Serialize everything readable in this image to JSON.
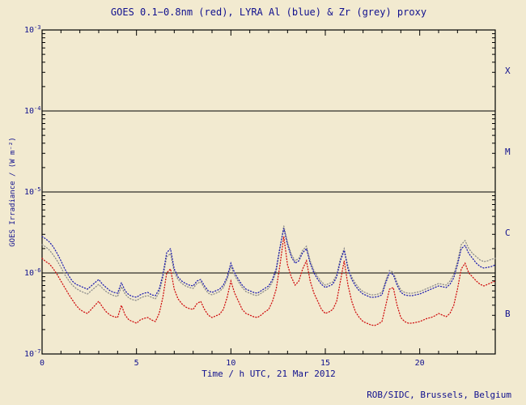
{
  "page": {
    "background_color": "#f2ead0",
    "text_color": "#10108e",
    "frame_color": "#000000",
    "footer": "ROB/SIDC, Brussels, Belgium"
  },
  "chart_data": {
    "type": "line",
    "title": "GOES 0.1−0.8nm (red), LYRA Al (blue) & Zr (grey) proxy",
    "xlabel": "Time / h UTC, 21 Mar 2012",
    "ylabel": "GOES Irradiance / (W m⁻²)",
    "x_range": [
      0,
      24
    ],
    "x_major_ticks": [
      0,
      5,
      10,
      15,
      20
    ],
    "x_minor_step": 1,
    "x_start": 0,
    "x_step": 0.2,
    "y_scale": "log",
    "y_log_range": [
      -7,
      -3
    ],
    "y_tick_exponents": [
      -7,
      -6,
      -5,
      -4,
      -3
    ],
    "hlines_log10": [
      -6,
      -5,
      -4
    ],
    "grid": false,
    "legend_position": "in-title",
    "flux_classes": [
      {
        "label": "X",
        "log10_mid": -3.5
      },
      {
        "label": "M",
        "log10_mid": -4.5
      },
      {
        "label": "C",
        "log10_mid": -5.5
      },
      {
        "label": "B",
        "log10_mid": -6.5
      }
    ],
    "series": [
      {
        "name": "LYRA Zr proxy",
        "color": "#8a8a8a",
        "values_log10": [
          -5.65,
          -5.68,
          -5.72,
          -5.78,
          -5.85,
          -5.93,
          -6.02,
          -6.09,
          -6.15,
          -6.19,
          -6.22,
          -6.24,
          -6.26,
          -6.22,
          -6.18,
          -6.14,
          -6.19,
          -6.23,
          -6.26,
          -6.28,
          -6.29,
          -6.17,
          -6.26,
          -6.31,
          -6.33,
          -6.34,
          -6.31,
          -6.29,
          -6.28,
          -6.3,
          -6.32,
          -6.24,
          -6.06,
          -5.8,
          -5.76,
          -5.99,
          -6.08,
          -6.13,
          -6.16,
          -6.18,
          -6.19,
          -6.13,
          -6.11,
          -6.19,
          -6.25,
          -6.27,
          -6.25,
          -6.23,
          -6.18,
          -6.08,
          -5.92,
          -6.03,
          -6.11,
          -6.18,
          -6.23,
          -6.25,
          -6.27,
          -6.28,
          -6.25,
          -6.22,
          -6.19,
          -6.11,
          -5.98,
          -5.7,
          -5.42,
          -5.62,
          -5.77,
          -5.85,
          -5.82,
          -5.72,
          -5.67,
          -5.85,
          -5.97,
          -6.05,
          -6.11,
          -6.15,
          -6.13,
          -6.11,
          -6.02,
          -5.82,
          -5.7,
          -5.92,
          -6.05,
          -6.13,
          -6.19,
          -6.23,
          -6.25,
          -6.27,
          -6.27,
          -6.26,
          -6.24,
          -6.09,
          -5.97,
          -5.99,
          -6.12,
          -6.21,
          -6.24,
          -6.25,
          -6.25,
          -6.24,
          -6.23,
          -6.21,
          -6.19,
          -6.17,
          -6.15,
          -6.13,
          -6.14,
          -6.15,
          -6.1,
          -6.02,
          -5.86,
          -5.65,
          -5.6,
          -5.7,
          -5.76,
          -5.8,
          -5.84,
          -5.86,
          -5.85,
          -5.83,
          -5.82
        ]
      },
      {
        "name": "LYRA Al",
        "color": "#2020b0",
        "values_log10": [
          -5.55,
          -5.58,
          -5.62,
          -5.68,
          -5.76,
          -5.85,
          -5.95,
          -6.03,
          -6.1,
          -6.14,
          -6.16,
          -6.18,
          -6.2,
          -6.16,
          -6.12,
          -6.08,
          -6.14,
          -6.18,
          -6.22,
          -6.24,
          -6.25,
          -6.12,
          -6.22,
          -6.27,
          -6.29,
          -6.3,
          -6.27,
          -6.25,
          -6.24,
          -6.27,
          -6.28,
          -6.2,
          -6.02,
          -5.75,
          -5.7,
          -5.95,
          -6.05,
          -6.1,
          -6.13,
          -6.15,
          -6.16,
          -6.1,
          -6.08,
          -6.16,
          -6.22,
          -6.24,
          -6.22,
          -6.2,
          -6.15,
          -6.05,
          -5.88,
          -6.0,
          -6.08,
          -6.15,
          -6.2,
          -6.22,
          -6.24,
          -6.25,
          -6.22,
          -6.19,
          -6.16,
          -6.08,
          -5.95,
          -5.68,
          -5.45,
          -5.65,
          -5.8,
          -5.88,
          -5.85,
          -5.75,
          -5.7,
          -5.88,
          -6.0,
          -6.08,
          -6.14,
          -6.18,
          -6.16,
          -6.14,
          -6.05,
          -5.85,
          -5.72,
          -5.95,
          -6.08,
          -6.16,
          -6.22,
          -6.26,
          -6.28,
          -6.3,
          -6.3,
          -6.29,
          -6.27,
          -6.12,
          -6.0,
          -6.02,
          -6.15,
          -6.24,
          -6.27,
          -6.28,
          -6.28,
          -6.27,
          -6.26,
          -6.24,
          -6.22,
          -6.2,
          -6.18,
          -6.16,
          -6.17,
          -6.18,
          -6.14,
          -6.06,
          -5.9,
          -5.7,
          -5.66,
          -5.76,
          -5.82,
          -5.88,
          -5.92,
          -5.94,
          -5.93,
          -5.92,
          -5.9
        ]
      },
      {
        "name": "GOES 0.1-0.8nm",
        "color": "#d01010",
        "values_log10": [
          -5.82,
          -5.86,
          -5.89,
          -5.95,
          -6.02,
          -6.1,
          -6.18,
          -6.26,
          -6.33,
          -6.4,
          -6.45,
          -6.48,
          -6.5,
          -6.45,
          -6.4,
          -6.35,
          -6.42,
          -6.48,
          -6.52,
          -6.54,
          -6.55,
          -6.4,
          -6.52,
          -6.58,
          -6.6,
          -6.62,
          -6.58,
          -6.56,
          -6.55,
          -6.58,
          -6.6,
          -6.5,
          -6.3,
          -6.0,
          -5.95,
          -6.2,
          -6.32,
          -6.38,
          -6.42,
          -6.44,
          -6.45,
          -6.38,
          -6.35,
          -6.45,
          -6.52,
          -6.55,
          -6.53,
          -6.51,
          -6.45,
          -6.3,
          -6.1,
          -6.25,
          -6.35,
          -6.45,
          -6.5,
          -6.52,
          -6.54,
          -6.55,
          -6.52,
          -6.48,
          -6.45,
          -6.35,
          -6.2,
          -5.9,
          -5.55,
          -5.9,
          -6.05,
          -6.15,
          -6.1,
          -5.95,
          -5.85,
          -6.1,
          -6.25,
          -6.35,
          -6.45,
          -6.5,
          -6.48,
          -6.45,
          -6.35,
          -6.1,
          -5.85,
          -6.15,
          -6.35,
          -6.48,
          -6.55,
          -6.6,
          -6.62,
          -6.64,
          -6.65,
          -6.63,
          -6.6,
          -6.4,
          -6.2,
          -6.18,
          -6.4,
          -6.55,
          -6.6,
          -6.62,
          -6.62,
          -6.61,
          -6.6,
          -6.58,
          -6.56,
          -6.55,
          -6.53,
          -6.5,
          -6.52,
          -6.54,
          -6.5,
          -6.4,
          -6.2,
          -5.95,
          -5.88,
          -6.0,
          -6.05,
          -6.1,
          -6.14,
          -6.16,
          -6.14,
          -6.12,
          -6.1
        ]
      }
    ]
  }
}
